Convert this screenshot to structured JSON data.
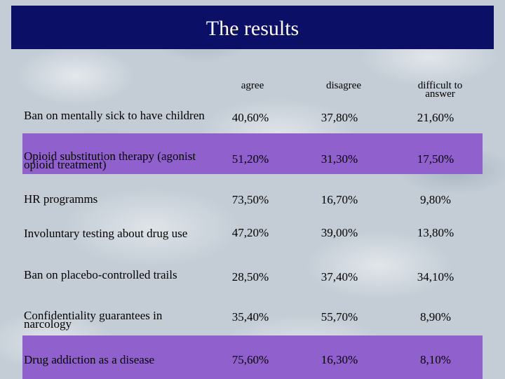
{
  "title": "The results",
  "columns": [
    "agree",
    "disagree",
    "difficult to answer"
  ],
  "rows": [
    {
      "label": "Ban on mentally sick to have children",
      "values": [
        "40,60%",
        "37,80%",
        "21,60%"
      ],
      "highlight": false
    },
    {
      "label": "Opioid substitution therapy (agonist opioid treatment)",
      "values": [
        "51,20%",
        "31,30%",
        "17,50%"
      ],
      "highlight": true
    },
    {
      "label": "HR programms",
      "values": [
        "73,50%",
        "16,70%",
        "9,80%"
      ],
      "highlight": false
    },
    {
      "label": "Involuntary testing about drug use",
      "values": [
        "47,20%",
        "39,00%",
        "13,80%"
      ],
      "highlight": false
    },
    {
      "label": "Ban on placebo-controlled trails",
      "values": [
        "28,50%",
        "37,40%",
        "34,10%"
      ],
      "highlight": false
    },
    {
      "label": "Confidentiality guarantees in narcology",
      "values": [
        "35,40%",
        "55,70%",
        "8,90%"
      ],
      "highlight": false
    },
    {
      "label": "Drug addiction as a disease",
      "values": [
        "75,60%",
        "16,30%",
        "8,10%"
      ],
      "highlight": true
    }
  ],
  "colors": {
    "title_bg": "#0c0f66",
    "highlight": "#9060cc"
  }
}
